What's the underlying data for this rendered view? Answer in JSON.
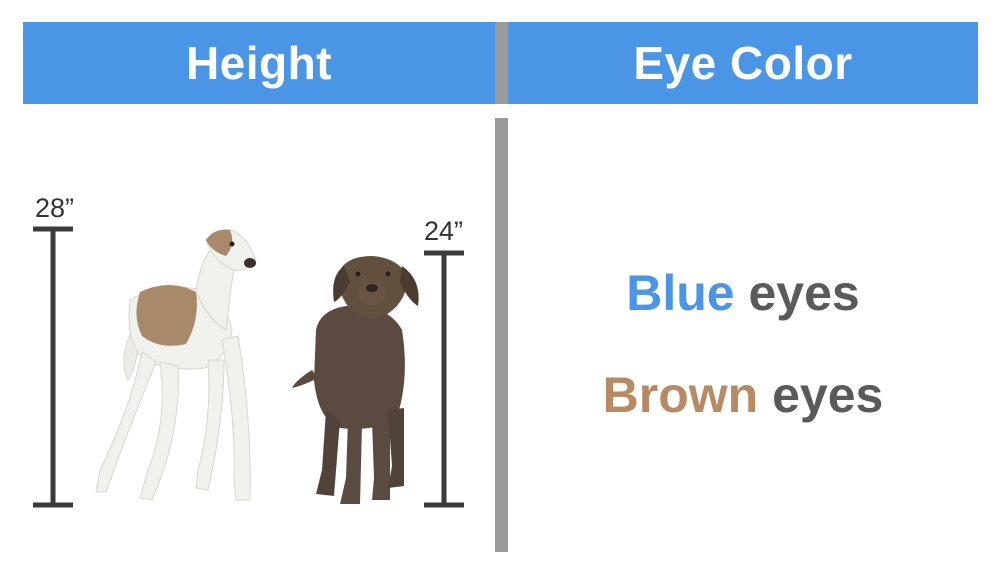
{
  "colors": {
    "header_bg": "#4a95e6",
    "divider": "#9b9b9b",
    "blue_word": "#4a95e6",
    "brown_word": "#b88a63",
    "eyes_word": "#5a5a5a",
    "ruler": "#3a3a3a",
    "greyhound_white": "#f1f1ee",
    "greyhound_patch": "#a88a6a",
    "labrador": "#5b4a3f"
  },
  "headers": {
    "left": "Height",
    "right": "Eye Color"
  },
  "measurements": {
    "left_height": "28”",
    "right_height": "24”"
  },
  "eye_colors": {
    "line1_color": "Blue",
    "line1_suffix": " eyes",
    "line2_color": "Brown",
    "line2_suffix": " eyes"
  },
  "images": {
    "dog1": "greyhound-dog",
    "dog2": "chocolate-labrador-dog"
  }
}
